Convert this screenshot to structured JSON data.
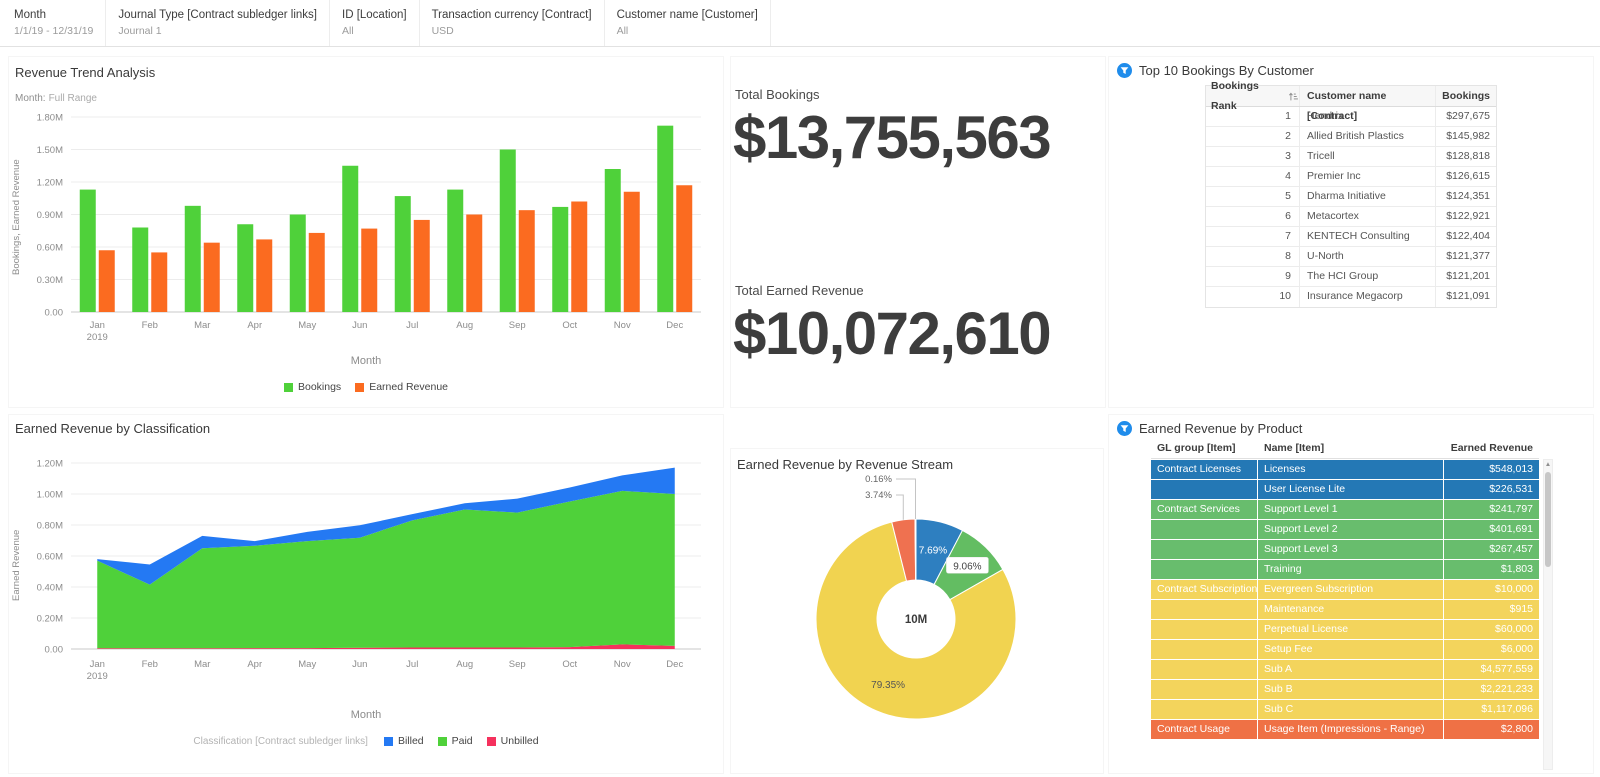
{
  "accent_color": "#1f8ceb",
  "filters": [
    {
      "label": "Month",
      "value": "1/1/19 - 12/31/19"
    },
    {
      "label": "Journal Type [Contract subledger links]",
      "value": "Journal 1"
    },
    {
      "label": "ID [Location]",
      "value": "All"
    },
    {
      "label": "Transaction currency [Contract]",
      "value": "USD"
    },
    {
      "label": "Customer name [Customer]",
      "value": "All"
    }
  ],
  "revenue_trend": {
    "title": "Revenue Trend Analysis",
    "subtitle_label": "Month:",
    "subtitle_value": "Full Range",
    "xlabel": "Month",
    "ylabel": "Bookings, Earned Revenue"
  },
  "totals": {
    "bookings_label": "Total Bookings",
    "bookings_value": "$13,755,563",
    "earned_label": "Total Earned Revenue",
    "earned_value": "$10,072,610"
  },
  "top10": {
    "title": "Top 10 Bookings By Customer",
    "columns": [
      "Bookings Rank",
      "Customer name [Contract]",
      "Bookings"
    ],
    "rows": [
      {
        "rank": "1",
        "customer": "Hendrix",
        "bookings": "$297,675"
      },
      {
        "rank": "2",
        "customer": "Allied British Plastics",
        "bookings": "$145,982"
      },
      {
        "rank": "3",
        "customer": "Tricell",
        "bookings": "$128,818"
      },
      {
        "rank": "4",
        "customer": "Premier Inc",
        "bookings": "$126,615"
      },
      {
        "rank": "5",
        "customer": "Dharma Initiative",
        "bookings": "$124,351"
      },
      {
        "rank": "6",
        "customer": "Metacortex",
        "bookings": "$122,921"
      },
      {
        "rank": "7",
        "customer": "KENTECH Consulting",
        "bookings": "$122,404"
      },
      {
        "rank": "8",
        "customer": "U-North",
        "bookings": "$121,377"
      },
      {
        "rank": "9",
        "customer": "The HCI Group",
        "bookings": "$121,201"
      },
      {
        "rank": "10",
        "customer": "Insurance Megacorp",
        "bookings": "$121,091"
      }
    ]
  },
  "classification": {
    "title": "Earned Revenue by Classification",
    "xlabel": "Month",
    "ylabel": "Earned Revenue",
    "legend_prefix": "Classification [Contract subledger links]",
    "legend_order": [
      "Billed",
      "Paid",
      "Unbilled"
    ]
  },
  "stream": {
    "title": "Earned Revenue by Revenue Stream"
  },
  "product": {
    "title": "Earned Revenue by Product",
    "columns": [
      "GL group [Item]",
      "Name [Item]",
      "Earned Revenue"
    ],
    "colors": {
      "blue": "#2478b5",
      "green": "#68bd6d",
      "yellow": "#f3d45c",
      "orange": "#ef7145"
    },
    "rows": [
      {
        "group": "Contract Licenses",
        "name": "Licenses",
        "value": "$548,013",
        "color": "blue"
      },
      {
        "group": "",
        "name": "User License Lite",
        "value": "$226,531",
        "color": "blue"
      },
      {
        "group": "Contract Services",
        "name": "Support Level 1",
        "value": "$241,797",
        "color": "green"
      },
      {
        "group": "",
        "name": "Support Level 2",
        "value": "$401,691",
        "color": "green"
      },
      {
        "group": "",
        "name": "Support Level 3",
        "value": "$267,457",
        "color": "green"
      },
      {
        "group": "",
        "name": "Training",
        "value": "$1,803",
        "color": "green"
      },
      {
        "group": "Contract Subscriptions",
        "name": "Evergreen Subscription",
        "value": "$10,000",
        "color": "yellow"
      },
      {
        "group": "",
        "name": "Maintenance",
        "value": "$915",
        "color": "yellow"
      },
      {
        "group": "",
        "name": "Perpetual License",
        "value": "$60,000",
        "color": "yellow"
      },
      {
        "group": "",
        "name": "Setup Fee",
        "value": "$6,000",
        "color": "yellow"
      },
      {
        "group": "",
        "name": "Sub A",
        "value": "$4,577,559",
        "color": "yellow"
      },
      {
        "group": "",
        "name": "Sub B",
        "value": "$2,221,233",
        "color": "yellow"
      },
      {
        "group": "",
        "name": "Sub C",
        "value": "$1,117,096",
        "color": "yellow"
      },
      {
        "group": "Contract Usage",
        "name": "Usage Item (Impressions - Range)",
        "value": "$2,800",
        "color": "orange"
      }
    ]
  },
  "chart_data": [
    {
      "type": "bar",
      "title": "Revenue Trend Analysis",
      "categories": [
        "Jan",
        "Feb",
        "Mar",
        "Apr",
        "May",
        "Jun",
        "Jul",
        "Aug",
        "Sep",
        "Oct",
        "Nov",
        "Dec"
      ],
      "first_year": "2019",
      "series": [
        {
          "name": "Bookings",
          "color": "#4fd13a",
          "values": [
            1.13,
            0.78,
            0.98,
            0.81,
            0.9,
            1.35,
            1.07,
            1.13,
            1.5,
            0.97,
            1.32,
            1.72
          ]
        },
        {
          "name": "Earned Revenue",
          "color": "#fb6b20",
          "values": [
            0.57,
            0.55,
            0.64,
            0.67,
            0.73,
            0.77,
            0.85,
            0.9,
            0.94,
            1.02,
            1.11,
            1.17
          ]
        }
      ],
      "xlabel": "Month",
      "ylabel": "Bookings, Earned Revenue",
      "ylim": [
        0,
        1.8
      ],
      "yticks": [
        "0.00",
        "0.30M",
        "0.60M",
        "0.90M",
        "1.20M",
        "1.50M",
        "1.80M"
      ],
      "unit": "M",
      "grid": true,
      "legend_position": "bottom"
    },
    {
      "type": "area",
      "title": "Earned Revenue by Classification",
      "stacked": true,
      "categories": [
        "Jan",
        "Feb",
        "Mar",
        "Apr",
        "May",
        "Jun",
        "Jul",
        "Aug",
        "Sep",
        "Oct",
        "Nov",
        "Dec"
      ],
      "first_year": "2019",
      "series": [
        {
          "name": "Unbilled",
          "color": "#f5315d",
          "values": [
            0.005,
            0.005,
            0.005,
            0.006,
            0.006,
            0.008,
            0.01,
            0.01,
            0.01,
            0.012,
            0.03,
            0.02
          ]
        },
        {
          "name": "Paid",
          "color": "#4fd13a",
          "values": [
            0.565,
            0.41,
            0.645,
            0.66,
            0.69,
            0.71,
            0.82,
            0.89,
            0.87,
            0.94,
            0.99,
            0.98
          ]
        },
        {
          "name": "Billed",
          "color": "#2479f3",
          "values": [
            0.01,
            0.13,
            0.08,
            0.03,
            0.06,
            0.08,
            0.04,
            0.04,
            0.09,
            0.09,
            0.1,
            0.17
          ]
        }
      ],
      "xlabel": "Month",
      "ylabel": "Earned Revenue",
      "ylim": [
        0,
        1.2
      ],
      "yticks": [
        "0.00",
        "0.20M",
        "0.40M",
        "0.60M",
        "0.80M",
        "1.00M",
        "1.20M"
      ],
      "unit": "M",
      "grid": true,
      "legend_position": "bottom"
    },
    {
      "type": "pie",
      "title": "Earned Revenue by Revenue Stream",
      "center_label": "10M",
      "slices": [
        {
          "label": "7.69%",
          "value": 7.69,
          "color": "#2e7fc0",
          "label_pos": "inside",
          "text_color": "#ffffff"
        },
        {
          "label": "9.06%",
          "value": 9.06,
          "color": "#63bd62",
          "label_pos": "badge"
        },
        {
          "label": "79.35%",
          "value": 79.35,
          "color": "#f1d350",
          "label_pos": "inside",
          "text_color": "#555555"
        },
        {
          "label": "3.74%",
          "value": 3.74,
          "color": "#ef7150",
          "label_pos": "callout"
        },
        {
          "label": "0.16%",
          "value": 0.16,
          "color": "#c9c9c9",
          "label_pos": "callout"
        }
      ]
    }
  ]
}
